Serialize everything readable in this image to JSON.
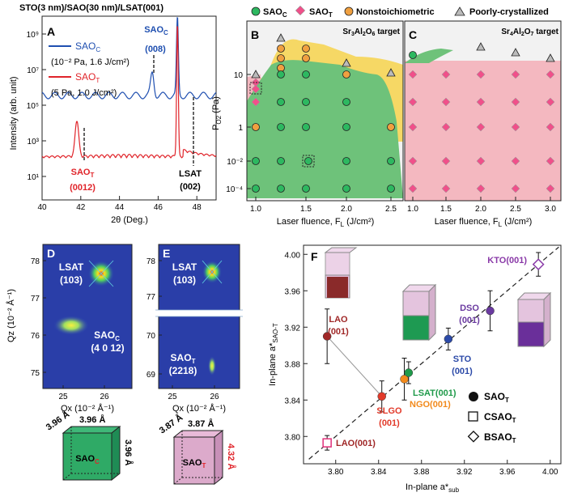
{
  "panelA": {
    "letter": "A",
    "header": "STO(3 nm)/SAO(30 nm)/LSAT(001)",
    "ylabel": "Intensity (arb. unit)",
    "xlabel": "2θ (Deg.)",
    "xticks": [
      "40",
      "42",
      "44",
      "46",
      "48"
    ],
    "yticks": [
      "10⁹",
      "10⁷",
      "10⁵",
      "10³",
      "10¹"
    ],
    "legend": [
      {
        "name": "SAOC",
        "cond": "(10⁻² Pa, 1.6 J/cm²)",
        "color": "#1f4fb0"
      },
      {
        "name": "SAOT",
        "cond": "(5 Pa, 1.0 J/cm²)",
        "color": "#e0242a"
      }
    ],
    "peak_labels": [
      {
        "text": "SAOC",
        "sub": "(008)",
        "color": "#1f4fb0"
      },
      {
        "text": "LSAT",
        "sub": "(002)",
        "color": "#111"
      },
      {
        "text": "SAOT",
        "sub": "(0012)",
        "color": "#e0242a"
      }
    ]
  },
  "legendTop": {
    "items": [
      "SAOC",
      "SAOT",
      "Nonstoichiometric",
      "Poorly-crystallized"
    ]
  },
  "panelB": {
    "letter": "B",
    "target": "Sr3Al2O6 target",
    "ylabel": "PO2 (Pa)",
    "xlabel": "Laser fluence, FL (J/cm²)",
    "xticks": [
      "1.0",
      "1.5",
      "2.0",
      "2.5"
    ],
    "yticks": [
      "10",
      "1",
      "10⁻²",
      "10⁻⁴"
    ]
  },
  "panelC": {
    "letter": "C",
    "target": "Sr4Al2O7 target",
    "xlabel": "Laser fluence, FL (J/cm²)",
    "xticks": [
      "1.0",
      "1.5",
      "2.0",
      "2.5",
      "3.0"
    ]
  },
  "panelD": {
    "letter": "D",
    "ylabel": "Qz (10⁻² Å⁻¹)",
    "xlabel": "Qx (10⁻² Å⁻¹)",
    "xticks": [
      "25",
      "26"
    ],
    "yticks": [
      "78",
      "77",
      "76",
      "75"
    ],
    "spots": [
      {
        "name": "LSAT",
        "hkl": "(103)"
      },
      {
        "name": "SAOC",
        "hkl": "(4 0 12)"
      }
    ],
    "cube": {
      "label": "SAOC",
      "a": "3.96 Å",
      "b": "3.96 Å",
      "c": "3.96 Å"
    }
  },
  "panelE": {
    "letter": "E",
    "xlabel": "Qx (10⁻² Å⁻¹)",
    "xticks": [
      "25",
      "26"
    ],
    "yticks": [
      "78",
      "77",
      "70",
      "69"
    ],
    "spots": [
      {
        "name": "LSAT",
        "hkl": "(103)"
      },
      {
        "name": "SAOT",
        "hkl": "(2218)"
      }
    ],
    "cube": {
      "label": "SAOT",
      "a": "3.87 Å",
      "b": "3.87 Å",
      "c": "4.32 Å"
    }
  },
  "panelF": {
    "letter": "F",
    "ylabel": "In-plane a*SAO-T",
    "xlabel": "In-plane a*sub",
    "xticks": [
      "3.80",
      "3.84",
      "3.88",
      "3.92",
      "3.96",
      "4.00"
    ],
    "yticks": [
      "4.00",
      "3.96",
      "3.92",
      "3.88",
      "3.84",
      "3.80"
    ],
    "legend": [
      {
        "symbol": "●",
        "name": "SAOT"
      },
      {
        "symbol": "□",
        "name": "CSAOT"
      },
      {
        "symbol": "◇",
        "name": "BSAOT"
      }
    ]
  },
  "chart_data": [
    {
      "type": "line",
      "panel": "A",
      "xlabel": "2θ (Deg.)",
      "ylabel": "Intensity (arb. unit)",
      "xlim": [
        40,
        49
      ],
      "ylog": true,
      "series": [
        {
          "name": "SAOC",
          "peaks": [
            {
              "x": 45.7,
              "label": "SAOC (008)"
            },
            {
              "x": 47.0,
              "label": "LSAT (002)"
            }
          ]
        },
        {
          "name": "SAOT",
          "peaks": [
            {
              "x": 41.8,
              "label": "SAOT (0012)"
            },
            {
              "x": 47.0,
              "label": "LSAT (002)"
            }
          ]
        }
      ]
    },
    {
      "type": "scatter",
      "panel": "F",
      "xlabel": "In-plane a*sub",
      "ylabel": "In-plane a*SAO-T",
      "xlim": [
        3.77,
        4.01
      ],
      "ylim": [
        3.77,
        4.01
      ],
      "points": [
        {
          "label": "LAO(001)",
          "x": 3.792,
          "y": 3.91,
          "err": 0.03,
          "color": "#a02828",
          "shape": "circle"
        },
        {
          "label": "SLGO(001)",
          "x": 3.843,
          "y": 3.844,
          "err": 0.017,
          "color": "#e23a2a",
          "shape": "circle"
        },
        {
          "label": "NGO(001)",
          "x": 3.864,
          "y": 3.863,
          "err": 0.023,
          "color": "#f28a1c",
          "shape": "circle"
        },
        {
          "label": "LSAT(001)",
          "x": 3.868,
          "y": 3.87,
          "err": 0.012,
          "color": "#1f9a4a",
          "shape": "circle"
        },
        {
          "label": "STO(001)",
          "x": 3.905,
          "y": 3.907,
          "err": 0.012,
          "color": "#2c4aa8",
          "shape": "circle"
        },
        {
          "label": "DSO(001)",
          "x": 3.944,
          "y": 3.938,
          "err": 0.022,
          "color": "#6a3aa0",
          "shape": "circle"
        },
        {
          "label": "KTO(001)",
          "x": 3.989,
          "y": 3.989,
          "err": 0.013,
          "color": "#8a3aa8",
          "shape": "diamond"
        },
        {
          "label": "LAO(001)",
          "x": 3.792,
          "y": 3.793,
          "err": 0.008,
          "color": "#e0307a",
          "shape": "square"
        }
      ]
    }
  ]
}
